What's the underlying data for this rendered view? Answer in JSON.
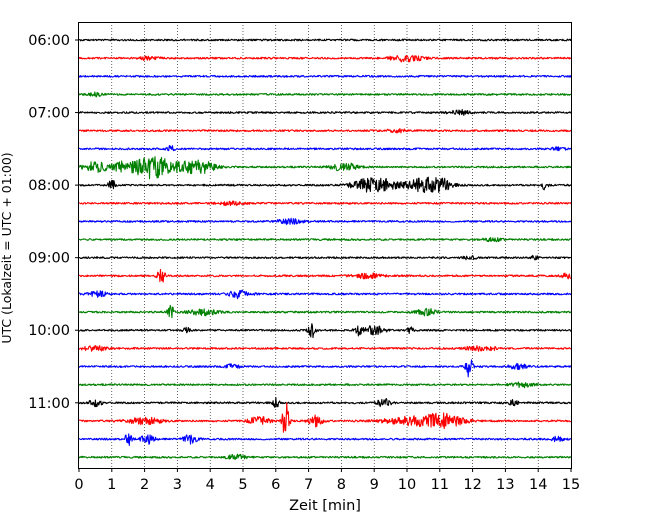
{
  "chart_data": {
    "type": "line",
    "title": "",
    "xlabel": "Zeit  [min]",
    "ylabel": "UTC (Lokalzeit = UTC + 01:00)",
    "xlim": [
      0,
      15
    ],
    "xticks": [
      0,
      1,
      2,
      3,
      4,
      5,
      6,
      7,
      8,
      9,
      10,
      11,
      12,
      13,
      14,
      15
    ],
    "yticks": [
      "06:00",
      "07:00",
      "08:00",
      "09:00",
      "10:00",
      "11:00"
    ],
    "grid": "vertical dotted",
    "trace_colors": [
      "#000000",
      "#ff0000",
      "#0000ff",
      "#008000"
    ],
    "traces": [
      {
        "start": "06:00",
        "color": "#000000",
        "events": []
      },
      {
        "start": "06:15",
        "color": "#ff0000",
        "events": [
          {
            "t": 10.0,
            "amp": 0.4,
            "dur": 0.5
          },
          {
            "t": 2.1,
            "amp": 0.2,
            "dur": 0.3
          }
        ]
      },
      {
        "start": "06:30",
        "color": "#0000ff",
        "events": []
      },
      {
        "start": "06:45",
        "color": "#008000",
        "events": [
          {
            "t": 0.5,
            "amp": 0.2,
            "dur": 0.2
          }
        ]
      },
      {
        "start": "07:00",
        "color": "#000000",
        "events": [
          {
            "t": 11.6,
            "amp": 0.3,
            "dur": 0.3
          }
        ]
      },
      {
        "start": "07:15",
        "color": "#ff0000",
        "events": [
          {
            "t": 9.7,
            "amp": 0.2,
            "dur": 0.3
          }
        ]
      },
      {
        "start": "07:30",
        "color": "#0000ff",
        "events": [
          {
            "t": 2.8,
            "amp": 0.4,
            "dur": 0.1
          },
          {
            "t": 14.6,
            "amp": 0.2,
            "dur": 0.2
          }
        ]
      },
      {
        "start": "07:45",
        "color": "#008000",
        "events": [
          {
            "t": 0.5,
            "amp": 0.6,
            "dur": 0.4
          },
          {
            "t": 1.3,
            "amp": 0.4,
            "dur": 0.3
          },
          {
            "t": 2.2,
            "amp": 1.4,
            "dur": 0.7
          },
          {
            "t": 3.6,
            "amp": 0.9,
            "dur": 0.5
          },
          {
            "t": 8.1,
            "amp": 0.5,
            "dur": 0.4
          }
        ]
      },
      {
        "start": "08:00",
        "color": "#000000",
        "events": [
          {
            "t": 1.0,
            "amp": 0.7,
            "dur": 0.1
          },
          {
            "t": 9.0,
            "amp": 1.0,
            "dur": 0.6
          },
          {
            "t": 10.6,
            "amp": 0.9,
            "dur": 0.6
          },
          {
            "t": 11.1,
            "amp": 0.4,
            "dur": 0.2
          },
          {
            "t": 14.2,
            "amp": 0.5,
            "dur": 0.1
          }
        ]
      },
      {
        "start": "08:15",
        "color": "#ff0000",
        "events": [
          {
            "t": 4.6,
            "amp": 0.2,
            "dur": 0.4
          }
        ]
      },
      {
        "start": "08:30",
        "color": "#0000ff",
        "events": [
          {
            "t": 6.4,
            "amp": 0.3,
            "dur": 0.4
          }
        ]
      },
      {
        "start": "08:45",
        "color": "#008000",
        "events": [
          {
            "t": 12.6,
            "amp": 0.2,
            "dur": 0.3
          }
        ]
      },
      {
        "start": "09:00",
        "color": "#000000",
        "events": [
          {
            "t": 11.9,
            "amp": 0.2,
            "dur": 0.2
          },
          {
            "t": 13.9,
            "amp": 0.3,
            "dur": 0.1
          }
        ]
      },
      {
        "start": "09:15",
        "color": "#ff0000",
        "events": [
          {
            "t": 2.5,
            "amp": 1.3,
            "dur": 0.1
          },
          {
            "t": 8.8,
            "amp": 0.3,
            "dur": 0.4
          },
          {
            "t": 14.9,
            "amp": 0.3,
            "dur": 0.2
          }
        ]
      },
      {
        "start": "09:30",
        "color": "#0000ff",
        "events": [
          {
            "t": 0.6,
            "amp": 0.3,
            "dur": 0.3
          },
          {
            "t": 4.9,
            "amp": 0.5,
            "dur": 0.3
          }
        ]
      },
      {
        "start": "09:45",
        "color": "#008000",
        "events": [
          {
            "t": 2.8,
            "amp": 0.8,
            "dur": 0.1
          },
          {
            "t": 3.8,
            "amp": 0.4,
            "dur": 0.4
          },
          {
            "t": 10.6,
            "amp": 0.4,
            "dur": 0.3
          }
        ]
      },
      {
        "start": "10:00",
        "color": "#000000",
        "events": [
          {
            "t": 3.3,
            "amp": 0.5,
            "dur": 0.1
          },
          {
            "t": 7.1,
            "amp": 1.0,
            "dur": 0.1
          },
          {
            "t": 8.5,
            "amp": 0.8,
            "dur": 0.1
          },
          {
            "t": 9.0,
            "amp": 0.6,
            "dur": 0.3
          },
          {
            "t": 10.1,
            "amp": 0.4,
            "dur": 0.1
          }
        ]
      },
      {
        "start": "10:15",
        "color": "#ff0000",
        "events": [
          {
            "t": 0.5,
            "amp": 0.3,
            "dur": 0.4
          },
          {
            "t": 12.1,
            "amp": 0.3,
            "dur": 0.3
          },
          {
            "t": 12.6,
            "amp": 0.4,
            "dur": 0.1
          }
        ]
      },
      {
        "start": "10:30",
        "color": "#0000ff",
        "events": [
          {
            "t": 11.9,
            "amp": 1.4,
            "dur": 0.1
          },
          {
            "t": 4.7,
            "amp": 0.3,
            "dur": 0.2
          },
          {
            "t": 13.4,
            "amp": 0.3,
            "dur": 0.3
          }
        ]
      },
      {
        "start": "10:45",
        "color": "#008000",
        "events": [
          {
            "t": 13.5,
            "amp": 0.3,
            "dur": 0.3
          }
        ]
      },
      {
        "start": "11:00",
        "color": "#000000",
        "events": [
          {
            "t": 0.5,
            "amp": 0.4,
            "dur": 0.2
          },
          {
            "t": 6.0,
            "amp": 0.6,
            "dur": 0.1
          },
          {
            "t": 9.3,
            "amp": 0.5,
            "dur": 0.2
          },
          {
            "t": 13.2,
            "amp": 0.3,
            "dur": 0.2
          }
        ]
      },
      {
        "start": "11:15",
        "color": "#ff0000",
        "events": [
          {
            "t": 2.0,
            "amp": 0.4,
            "dur": 0.5
          },
          {
            "t": 5.5,
            "amp": 0.5,
            "dur": 0.3
          },
          {
            "t": 6.3,
            "amp": 2.4,
            "dur": 0.1
          },
          {
            "t": 7.2,
            "amp": 0.7,
            "dur": 0.2
          },
          {
            "t": 10.1,
            "amp": 0.5,
            "dur": 0.8
          },
          {
            "t": 11.1,
            "amp": 0.8,
            "dur": 0.6
          }
        ]
      },
      {
        "start": "11:30",
        "color": "#0000ff",
        "events": [
          {
            "t": 1.5,
            "amp": 0.8,
            "dur": 0.1
          },
          {
            "t": 2.1,
            "amp": 0.6,
            "dur": 0.2
          },
          {
            "t": 3.4,
            "amp": 0.6,
            "dur": 0.2
          },
          {
            "t": 14.6,
            "amp": 0.3,
            "dur": 0.2
          }
        ]
      },
      {
        "start": "11:45",
        "color": "#008000",
        "events": [
          {
            "t": 4.8,
            "amp": 0.3,
            "dur": 0.3
          }
        ]
      }
    ]
  }
}
